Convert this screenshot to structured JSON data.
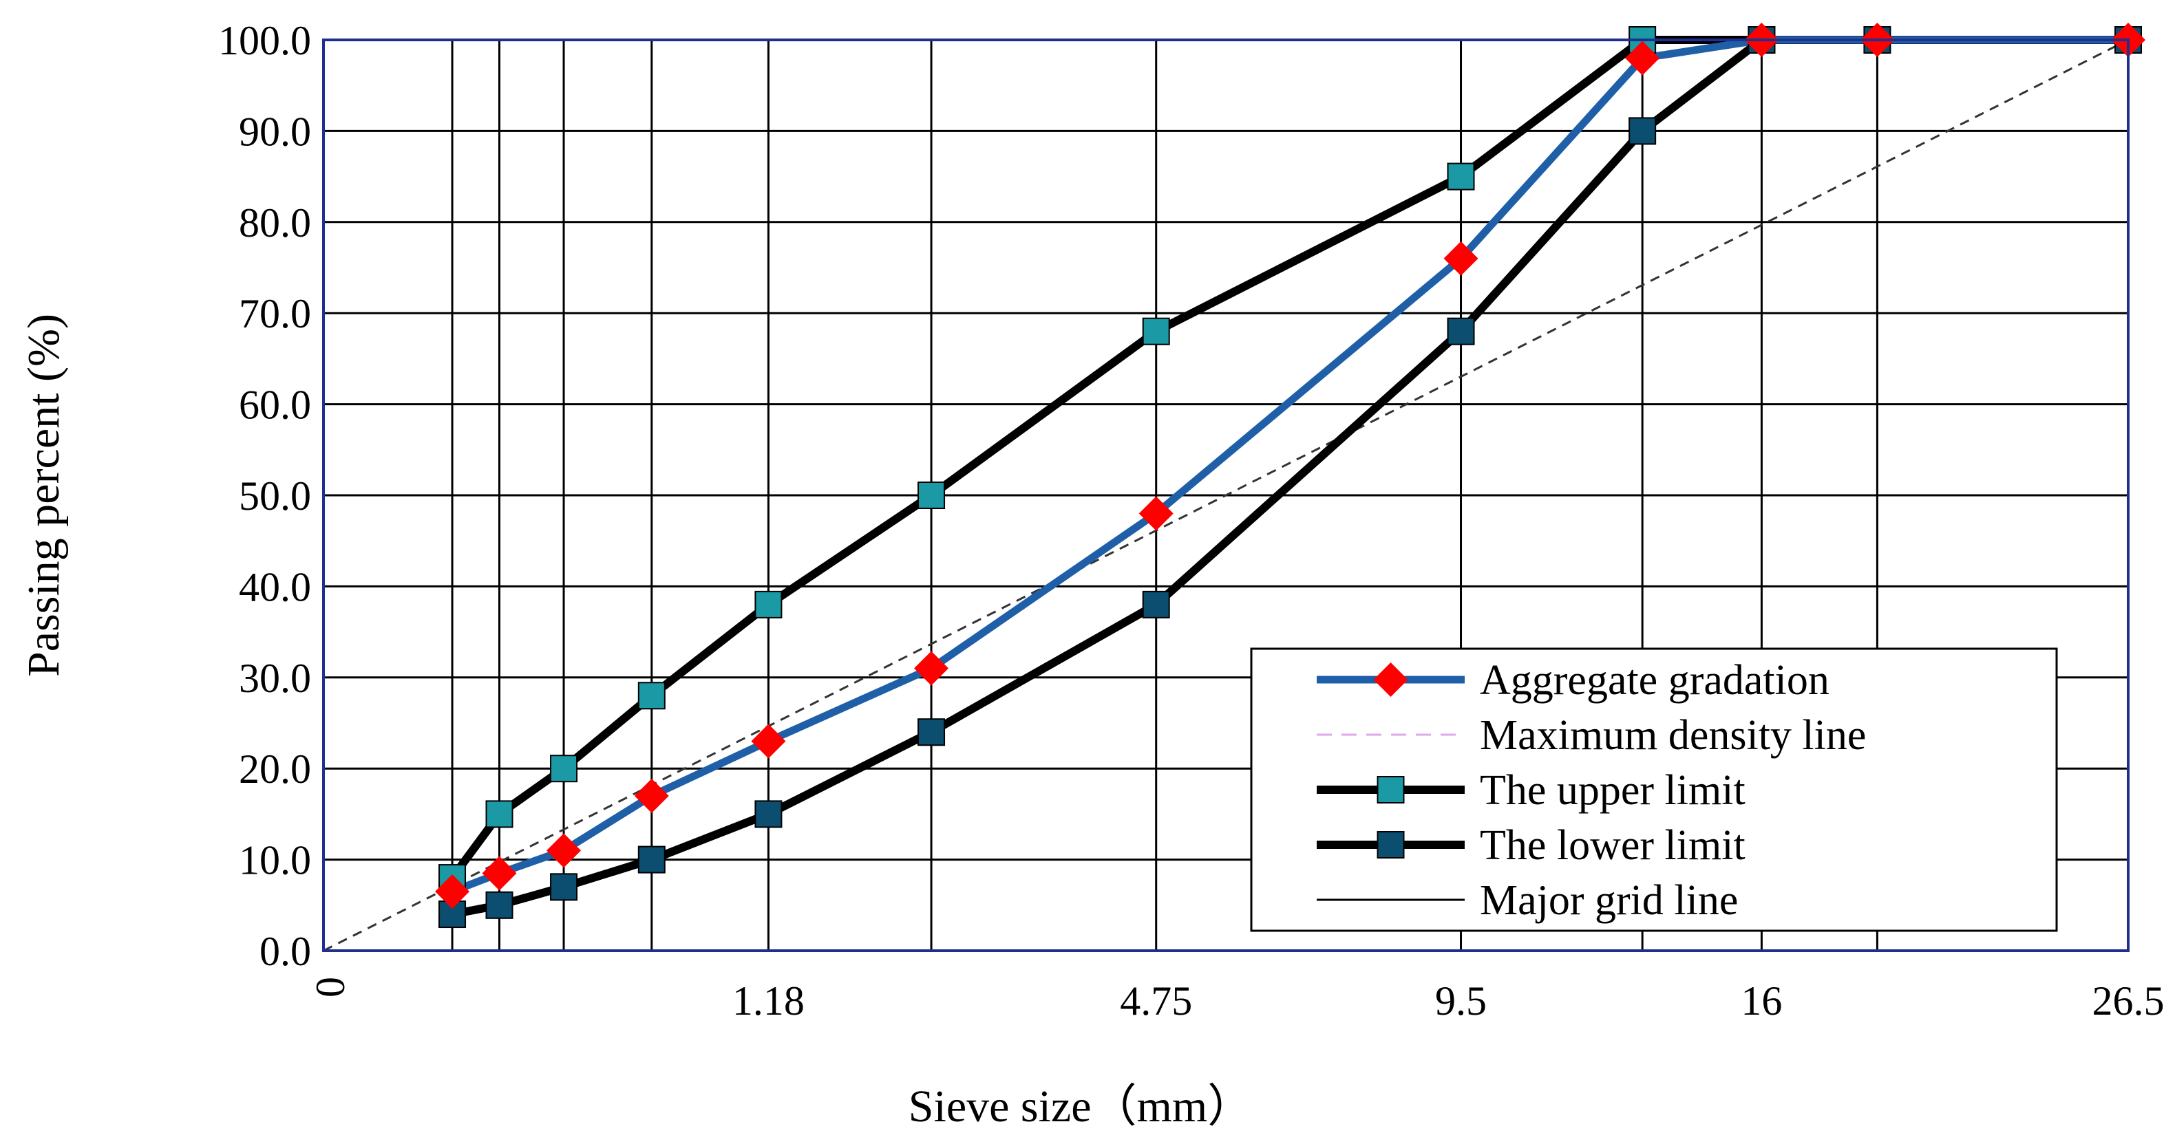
{
  "chart_data": {
    "type": "line",
    "title": "",
    "xlabel": "Sieve size（mm）",
    "ylabel": "Passing percent (%)",
    "ylim": [
      0,
      100
    ],
    "yticks": [
      "0.0",
      "10.0",
      "20.0",
      "30.0",
      "40.0",
      "50.0",
      "60.0",
      "70.0",
      "80.0",
      "90.0",
      "100.0"
    ],
    "x_scale": "power 0.45",
    "sieve_sizes": [
      0,
      0.075,
      0.15,
      0.3,
      0.6,
      1.18,
      2.36,
      4.75,
      9.5,
      13.2,
      16,
      19,
      26.5
    ],
    "x_tick_labels": [
      {
        "value": 0,
        "label": "0"
      },
      {
        "value": 1.18,
        "label": "1.18"
      },
      {
        "value": 4.75,
        "label": "4.75"
      },
      {
        "value": 9.5,
        "label": "9.5"
      },
      {
        "value": 16,
        "label": "16"
      },
      {
        "value": 26.5,
        "label": "26.5"
      }
    ],
    "series": [
      {
        "name": "Maximum density line",
        "style": "dashed",
        "color": "#333333",
        "x": [
          0,
          26.5
        ],
        "values": [
          0,
          100
        ]
      },
      {
        "name": "The upper limit",
        "color": "#000000",
        "marker": "square",
        "marker_color": "#1b9aa6",
        "x": [
          0.075,
          0.15,
          0.3,
          0.6,
          1.18,
          2.36,
          4.75,
          9.5,
          13.2,
          16
        ],
        "values": [
          8,
          15,
          20,
          28,
          38,
          50,
          68,
          85,
          100,
          100
        ]
      },
      {
        "name": "The lower limit",
        "color": "#000000",
        "marker": "square",
        "marker_color": "#0b4e70",
        "x": [
          0.075,
          0.15,
          0.3,
          0.6,
          1.18,
          2.36,
          4.75,
          9.5,
          13.2,
          16,
          19,
          26.5
        ],
        "values": [
          4,
          5,
          7,
          10,
          15,
          24,
          38,
          68,
          90,
          100,
          100,
          100
        ]
      },
      {
        "name": "Aggregate gradation",
        "color": "#1f5fa8",
        "marker": "diamond",
        "marker_color": "#ff0000",
        "x": [
          0.075,
          0.15,
          0.3,
          0.6,
          1.18,
          2.36,
          4.75,
          9.5,
          13.2,
          16,
          19,
          26.5
        ],
        "values": [
          6.5,
          8.5,
          11,
          17,
          23,
          31,
          48,
          76,
          98,
          100,
          100,
          100
        ]
      }
    ],
    "legend": {
      "position": "bottom-right",
      "entries": [
        {
          "label": "Aggregate gradation",
          "kind": "aggregate"
        },
        {
          "label": "Maximum density line",
          "kind": "density"
        },
        {
          "label": "The upper limit",
          "kind": "upper"
        },
        {
          "label": "The lower limit",
          "kind": "lower"
        },
        {
          "label": "Major grid line",
          "kind": "grid"
        }
      ]
    },
    "colors": {
      "grid": "#000000",
      "frame": "#1f2f8f",
      "aggregate_line": "#1f5fa8",
      "aggregate_marker": "#ff0000",
      "upper_marker": "#1b9aa6",
      "lower_marker": "#0b4e70",
      "limit_line": "#000000",
      "density_line": "#333333",
      "legend_density_sample": "#e0a8ec"
    }
  }
}
